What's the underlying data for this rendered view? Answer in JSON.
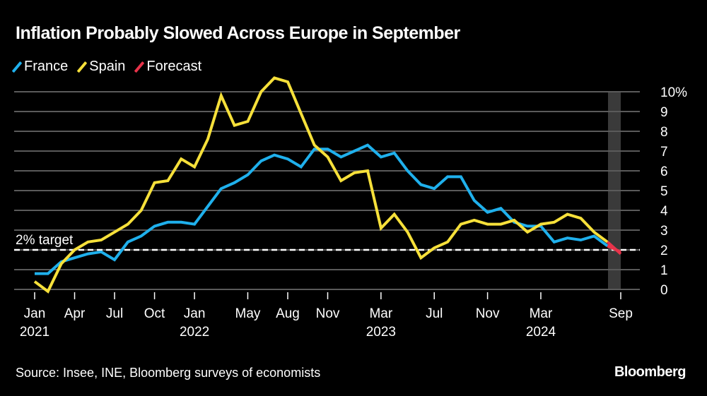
{
  "title": "Inflation Probably Slowed Across Europe in September",
  "source": "Source: Insee, INE, Bloomberg surveys of economists",
  "logo": "Bloomberg",
  "colors": {
    "France": "#1fb0ec",
    "Spain": "#f6e03a",
    "Forecast": "#e8334a",
    "grid": "#5a5a5a",
    "band": "#3a3a3a"
  },
  "chart_data": {
    "type": "line",
    "title": "Inflation Probably Slowed Across Europe in September",
    "legend": [
      "France",
      "Spain",
      "Forecast"
    ],
    "legend_position": "top-left",
    "x_start": "2021-01",
    "x_end": "2024-09",
    "x_ticks": [
      {
        "month": 0,
        "label": "Jan",
        "year": "2021"
      },
      {
        "month": 3,
        "label": "Apr",
        "year": ""
      },
      {
        "month": 6,
        "label": "Jul",
        "year": ""
      },
      {
        "month": 9,
        "label": "Oct",
        "year": ""
      },
      {
        "month": 12,
        "label": "Jan",
        "year": "2022"
      },
      {
        "month": 16,
        "label": "May",
        "year": ""
      },
      {
        "month": 19,
        "label": "Aug",
        "year": ""
      },
      {
        "month": 22,
        "label": "Nov",
        "year": ""
      },
      {
        "month": 26,
        "label": "Mar",
        "year": "2023"
      },
      {
        "month": 30,
        "label": "Jul",
        "year": ""
      },
      {
        "month": 34,
        "label": "Nov",
        "year": ""
      },
      {
        "month": 38,
        "label": "Mar",
        "year": "2024"
      },
      {
        "month": 44,
        "label": "Sep",
        "year": ""
      }
    ],
    "y_ticks": [
      "0",
      "1",
      "2",
      "3",
      "4",
      "5",
      "6",
      "7",
      "8",
      "9",
      "10%"
    ],
    "ylim": [
      0,
      10
    ],
    "grid": true,
    "reference_line": {
      "value": 2,
      "label": "2% target"
    },
    "highlight_month": "2024-09",
    "series": [
      {
        "name": "France",
        "values": [
          0.8,
          0.8,
          1.4,
          1.6,
          1.8,
          1.9,
          1.5,
          2.4,
          2.7,
          3.2,
          3.4,
          3.4,
          3.3,
          4.2,
          5.1,
          5.4,
          5.8,
          6.5,
          6.8,
          6.6,
          6.2,
          7.1,
          7.1,
          6.7,
          7.0,
          7.3,
          6.7,
          6.9,
          6.0,
          5.3,
          5.1,
          5.7,
          5.7,
          4.5,
          3.9,
          4.1,
          3.4,
          3.2,
          3.2,
          2.4,
          2.6,
          2.5,
          2.7,
          2.2
        ]
      },
      {
        "name": "Spain",
        "values": [
          0.4,
          -0.1,
          1.3,
          2.0,
          2.4,
          2.5,
          2.9,
          3.3,
          4.0,
          5.4,
          5.5,
          6.6,
          6.2,
          7.6,
          9.8,
          8.3,
          8.5,
          10.0,
          10.7,
          10.5,
          8.9,
          7.3,
          6.7,
          5.5,
          5.9,
          6.0,
          3.1,
          3.8,
          2.9,
          1.6,
          2.1,
          2.4,
          3.3,
          3.5,
          3.3,
          3.3,
          3.5,
          2.9,
          3.3,
          3.4,
          3.8,
          3.6,
          2.9,
          2.4
        ]
      },
      {
        "name": "Forecast",
        "segments": [
          {
            "series": "France",
            "from": [
              "2024-08",
              2.2
            ],
            "to": [
              "2024-09",
              1.9
            ]
          },
          {
            "series": "Spain",
            "from": [
              "2024-08",
              2.4
            ],
            "to": [
              "2024-09",
              1.8
            ]
          }
        ]
      }
    ]
  }
}
